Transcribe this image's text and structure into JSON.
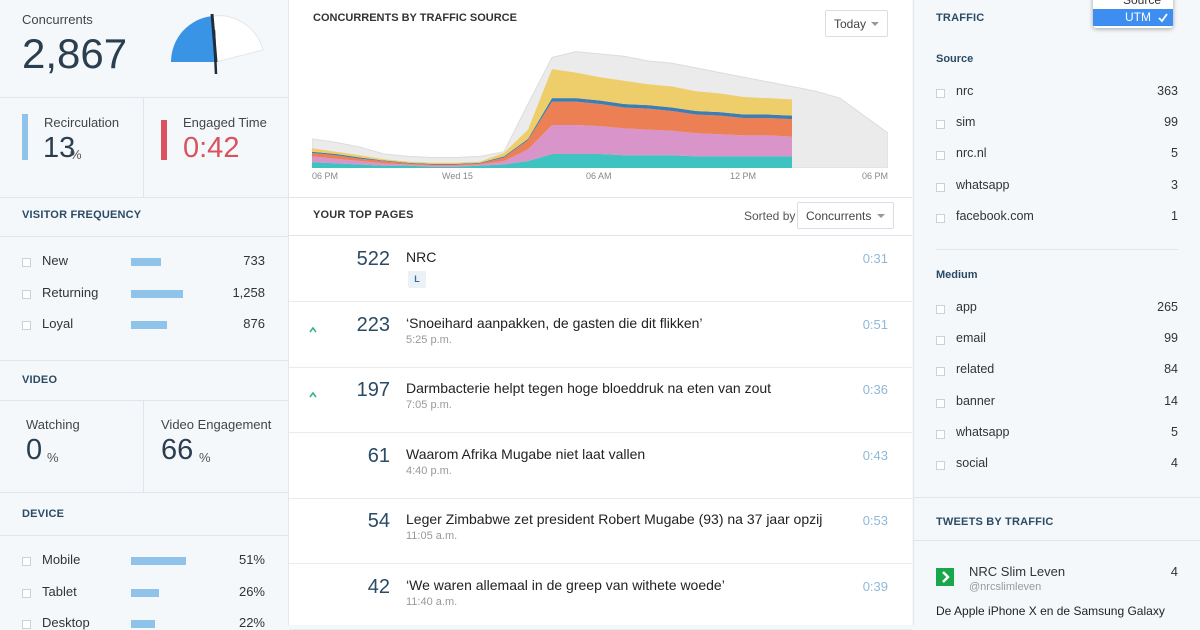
{
  "left": {
    "concurrents": {
      "label": "Concurrents",
      "value": "2,867"
    },
    "recirculation": {
      "label": "Recirculation",
      "value": "13",
      "unit": "%"
    },
    "engaged": {
      "label": "Engaged Time",
      "value": "0:42"
    },
    "visitor_frequency": {
      "title": "VISITOR FREQUENCY",
      "rows": [
        {
          "label": "New",
          "value": 733,
          "value_label": "733"
        },
        {
          "label": "Returning",
          "value": 1258,
          "value_label": "1,258"
        },
        {
          "label": "Loyal",
          "value": 876,
          "value_label": "876"
        }
      ]
    },
    "video": {
      "title": "VIDEO",
      "watching": {
        "label": "Watching",
        "value": "0",
        "unit": "%"
      },
      "engagement": {
        "label": "Video Engagement",
        "value": "66",
        "unit": "%"
      }
    },
    "device": {
      "title": "DEVICE",
      "rows": [
        {
          "label": "Mobile",
          "value": 51,
          "value_label": "51%"
        },
        {
          "label": "Tablet",
          "value": 26,
          "value_label": "26%"
        },
        {
          "label": "Desktop",
          "value": 22,
          "value_label": "22%"
        }
      ]
    }
  },
  "chart_data": {
    "type": "area",
    "title": "CONCURRENTS BY TRAFFIC SOURCE",
    "range_select": "Today",
    "categories": [
      "06 PM",
      null,
      null,
      null,
      null,
      null,
      "Wed 15",
      null,
      null,
      null,
      null,
      null,
      "06 AM",
      null,
      null,
      null,
      null,
      null,
      "12 PM",
      null,
      null,
      null,
      null,
      null,
      "06 PM"
    ],
    "ylim": [
      0,
      110
    ],
    "comparison": {
      "color": "#ebebeb",
      "values": [
        25,
        22,
        18,
        12,
        10,
        9,
        9,
        10,
        14,
        55,
        95,
        100,
        98,
        96,
        92,
        90,
        86,
        82,
        78,
        74,
        70,
        66,
        60,
        45,
        30
      ]
    },
    "series": [
      {
        "color": "#3fc3c1",
        "values": [
          5,
          4,
          3,
          2,
          2,
          1,
          1,
          2,
          3,
          6,
          12,
          12,
          12,
          11,
          11,
          11,
          10,
          10,
          10,
          10,
          10,
          null,
          null,
          null,
          null
        ]
      },
      {
        "color": "#d994c9",
        "values": [
          5,
          4,
          3,
          2,
          1,
          1,
          1,
          1,
          3,
          10,
          25,
          25,
          24,
          23,
          22,
          21,
          20,
          19,
          18,
          18,
          17,
          null,
          null,
          null,
          null
        ]
      },
      {
        "color": "#ec8054",
        "values": [
          3,
          3,
          2,
          2,
          1,
          1,
          1,
          1,
          3,
          8,
          20,
          20,
          19,
          18,
          18,
          17,
          16,
          16,
          15,
          15,
          15,
          null,
          null,
          null,
          null
        ]
      },
      {
        "color": "#3d7db3",
        "values": [
          1,
          1,
          1,
          0.5,
          0.5,
          0.5,
          0.5,
          0.5,
          1,
          1,
          3,
          3,
          3,
          3,
          3,
          3,
          3,
          3,
          3,
          3,
          3,
          null,
          null,
          null,
          null
        ]
      },
      {
        "color": "#eecd6b",
        "values": [
          3,
          2,
          2,
          1,
          1,
          1,
          1,
          1,
          3,
          8,
          25,
          22,
          20,
          20,
          18,
          18,
          17,
          16,
          15,
          14,
          14,
          null,
          null,
          null,
          null
        ]
      }
    ]
  },
  "top_pages": {
    "title": "YOUR TOP PAGES",
    "sorted_by": "Sorted by",
    "sort": "Concurrents",
    "rows": [
      {
        "count": "522",
        "title": "NRC",
        "tag": "L",
        "time": "0:31",
        "up": false
      },
      {
        "count": "223",
        "title": "‘Snoeihard aanpakken, de gasten die dit flikken’",
        "sub": "5:25 p.m.",
        "time": "0:51",
        "up": true
      },
      {
        "count": "197",
        "title": "Darmbacterie helpt tegen hoge bloeddruk na eten van zout",
        "sub": "7:05 p.m.",
        "time": "0:36",
        "up": true
      },
      {
        "count": "61",
        "title": "Waarom Afrika Mugabe niet laat vallen",
        "sub": "4:40 p.m.",
        "time": "0:43",
        "up": false
      },
      {
        "count": "54",
        "title": "Leger Zimbabwe zet president Robert Mugabe (93) na 37 jaar opzij",
        "sub": "11:05 a.m.",
        "time": "0:53",
        "up": false
      },
      {
        "count": "42",
        "title": "‘We waren allemaal in de greep van withete woede’",
        "sub": "11:40 a.m.",
        "time": "0:39",
        "up": false
      }
    ]
  },
  "traffic": {
    "title": "TRAFFIC",
    "menu": {
      "options": [
        "Source",
        "UTM"
      ],
      "selected": 1
    },
    "groups": [
      {
        "title": "Source",
        "rows": [
          {
            "label": "nrc",
            "count": "363"
          },
          {
            "label": "sim",
            "count": "99"
          },
          {
            "label": "nrc.nl",
            "count": "5"
          },
          {
            "label": "whatsapp",
            "count": "3"
          },
          {
            "label": "facebook.com",
            "count": "1"
          }
        ]
      },
      {
        "title": "Medium",
        "rows": [
          {
            "label": "app",
            "count": "265"
          },
          {
            "label": "email",
            "count": "99"
          },
          {
            "label": "related",
            "count": "84"
          },
          {
            "label": "banner",
            "count": "14"
          },
          {
            "label": "whatsapp",
            "count": "5"
          },
          {
            "label": "social",
            "count": "4"
          }
        ]
      }
    ]
  },
  "tweets": {
    "title": "TWEETS BY TRAFFIC",
    "items": [
      {
        "name": "NRC Slim Leven",
        "handle": "@nrcslimleven",
        "count": "4",
        "text": "De Apple iPhone X en de Samsung Galaxy"
      }
    ]
  }
}
